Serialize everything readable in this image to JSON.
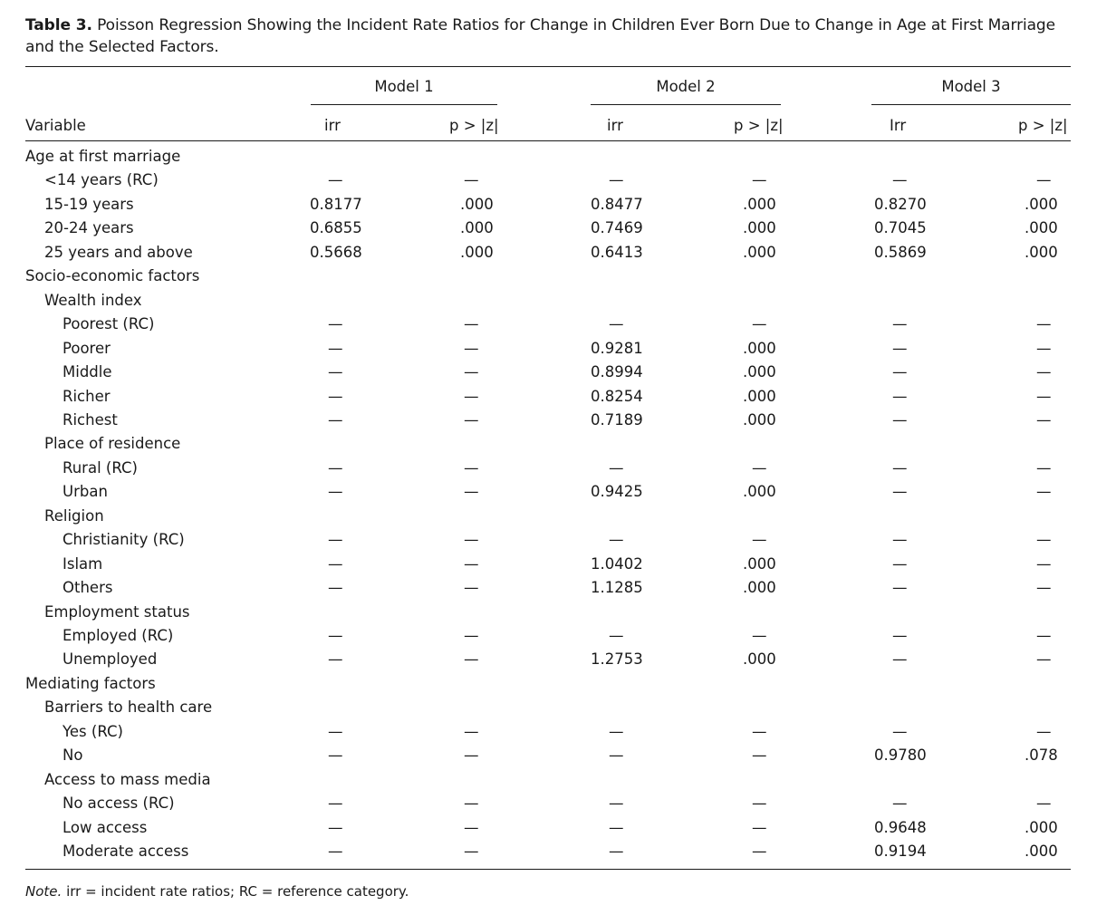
{
  "caption": {
    "label": "Table 3.",
    "text": "Poisson Regression Showing the Incident Rate Ratios for Change in Children Ever Born Due to Change in Age at First Marriage and the Selected Factors."
  },
  "models": [
    "Model 1",
    "Model 2",
    "Model 3"
  ],
  "columns": {
    "variable": "Variable",
    "m1_irr": "irr",
    "m1_p": "p > |z|",
    "m2_irr": "irr",
    "m2_p": "p > |z|",
    "m3_irr": "Irr",
    "m3_p": "p > |z|"
  },
  "rows": [
    {
      "label": "Age at first marriage",
      "indent": 0,
      "v": []
    },
    {
      "label": "<14 years (RC)",
      "indent": 1,
      "v": [
        "—",
        "—",
        "—",
        "—",
        "—",
        "—"
      ]
    },
    {
      "label": "15-19 years",
      "indent": 1,
      "v": [
        "0.8177",
        ".000",
        "0.8477",
        ".000",
        "0.8270",
        ".000"
      ]
    },
    {
      "label": "20-24 years",
      "indent": 1,
      "v": [
        "0.6855",
        ".000",
        "0.7469",
        ".000",
        "0.7045",
        ".000"
      ]
    },
    {
      "label": "25 years and above",
      "indent": 1,
      "v": [
        "0.5668",
        ".000",
        "0.6413",
        ".000",
        "0.5869",
        ".000"
      ]
    },
    {
      "label": "Socio-economic factors",
      "indent": 0,
      "v": []
    },
    {
      "label": "Wealth index",
      "indent": 1,
      "v": []
    },
    {
      "label": "Poorest (RC)",
      "indent": 2,
      "v": [
        "—",
        "—",
        "—",
        "—",
        "—",
        "—"
      ]
    },
    {
      "label": "Poorer",
      "indent": 2,
      "v": [
        "—",
        "—",
        "0.9281",
        ".000",
        "—",
        "—"
      ]
    },
    {
      "label": "Middle",
      "indent": 2,
      "v": [
        "—",
        "—",
        "0.8994",
        ".000",
        "—",
        "—"
      ]
    },
    {
      "label": "Richer",
      "indent": 2,
      "v": [
        "—",
        "—",
        "0.8254",
        ".000",
        "—",
        "—"
      ]
    },
    {
      "label": "Richest",
      "indent": 2,
      "v": [
        "—",
        "—",
        "0.7189",
        ".000",
        "—",
        "—"
      ]
    },
    {
      "label": "Place of residence",
      "indent": 1,
      "v": []
    },
    {
      "label": "Rural (RC)",
      "indent": 2,
      "v": [
        "—",
        "—",
        "—",
        "—",
        "—",
        "—"
      ]
    },
    {
      "label": "Urban",
      "indent": 2,
      "v": [
        "—",
        "—",
        "0.9425",
        ".000",
        "—",
        "—"
      ]
    },
    {
      "label": "Religion",
      "indent": 1,
      "v": []
    },
    {
      "label": "Christianity (RC)",
      "indent": 2,
      "v": [
        "—",
        "—",
        "—",
        "—",
        "—",
        "—"
      ]
    },
    {
      "label": "Islam",
      "indent": 2,
      "v": [
        "—",
        "—",
        "1.0402",
        ".000",
        "—",
        "—"
      ]
    },
    {
      "label": "Others",
      "indent": 2,
      "v": [
        "—",
        "—",
        "1.1285",
        ".000",
        "—",
        "—"
      ]
    },
    {
      "label": "Employment status",
      "indent": 1,
      "v": []
    },
    {
      "label": "Employed (RC)",
      "indent": 2,
      "v": [
        "—",
        "—",
        "—",
        "—",
        "—",
        "—"
      ]
    },
    {
      "label": "Unemployed",
      "indent": 2,
      "v": [
        "—",
        "—",
        "1.2753",
        ".000",
        "—",
        "—"
      ]
    },
    {
      "label": "Mediating factors",
      "indent": 0,
      "v": []
    },
    {
      "label": "Barriers to health care",
      "indent": 1,
      "v": []
    },
    {
      "label": "Yes (RC)",
      "indent": 2,
      "v": [
        "—",
        "—",
        "—",
        "—",
        "—",
        "—"
      ]
    },
    {
      "label": "No",
      "indent": 2,
      "v": [
        "—",
        "—",
        "—",
        "—",
        "0.9780",
        ".078"
      ]
    },
    {
      "label": "Access to mass media",
      "indent": 1,
      "v": []
    },
    {
      "label": "No access (RC)",
      "indent": 2,
      "v": [
        "—",
        "—",
        "—",
        "—",
        "—",
        "—"
      ]
    },
    {
      "label": "Low access",
      "indent": 2,
      "v": [
        "—",
        "—",
        "—",
        "—",
        "0.9648",
        ".000"
      ]
    },
    {
      "label": "Moderate access",
      "indent": 2,
      "v": [
        "—",
        "—",
        "—",
        "—",
        "0.9194",
        ".000"
      ]
    }
  ],
  "note": {
    "label": "Note.",
    "text": "irr = incident rate ratios; RC = reference category."
  }
}
